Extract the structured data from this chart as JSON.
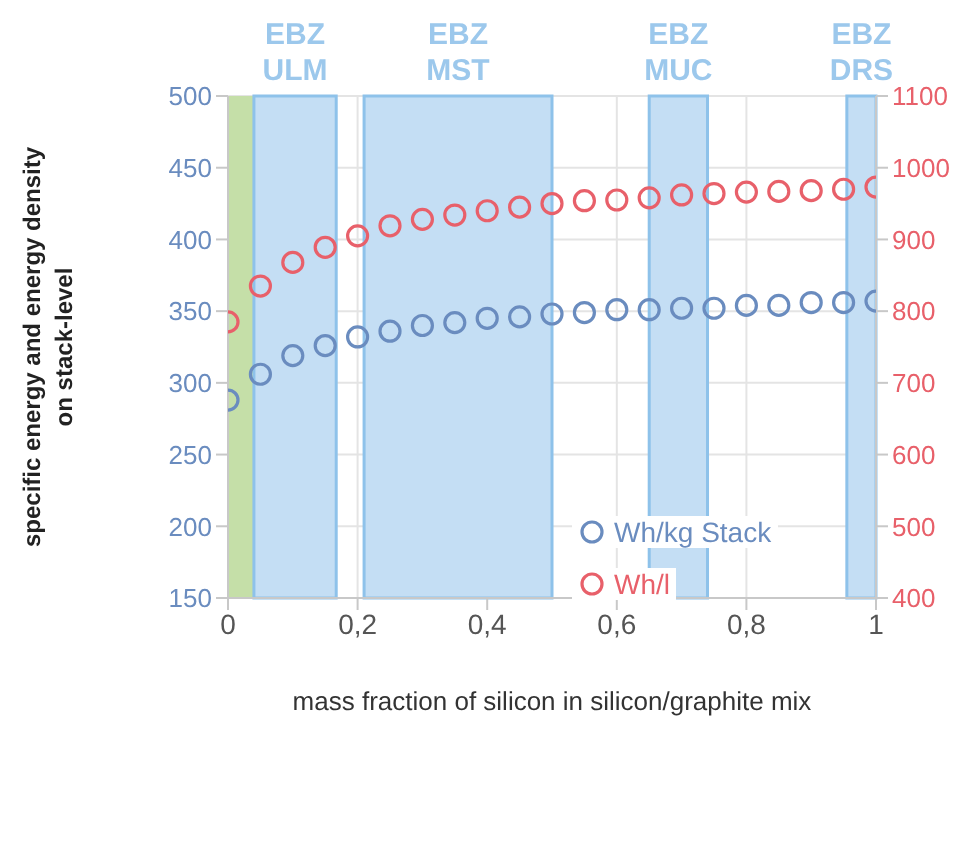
{
  "chart_data": {
    "type": "scatter",
    "xlabel": "mass fraction of silicon in silicon/graphite mix",
    "ylabel": "specific energy  and energy density on stack-level",
    "x": [
      0,
      0.05,
      0.1,
      0.15,
      0.2,
      0.25,
      0.3,
      0.35,
      0.4,
      0.45,
      0.5,
      0.55,
      0.6,
      0.65,
      0.7,
      0.75,
      0.8,
      0.85,
      0.9,
      0.95,
      1
    ],
    "series": [
      {
        "name": "Wh/kg Stack",
        "color": "#6a8cbf",
        "values": [
          288,
          306,
          319,
          326,
          332,
          336,
          340,
          342,
          345,
          346,
          348,
          349,
          351,
          351,
          352,
          352,
          354,
          354,
          356,
          356,
          357
        ]
      },
      {
        "name": "Wh/l",
        "color": "#e8606a",
        "axis": "y2",
        "values": [
          785,
          835,
          868,
          889,
          905,
          919,
          928,
          934,
          940,
          945,
          950,
          954,
          955,
          958,
          962,
          964,
          966,
          967,
          968,
          970,
          973
        ]
      }
    ],
    "xlim": [
      0,
      1
    ],
    "xticks": [
      0,
      {
        "value": 0.2,
        "label": "0,2"
      },
      {
        "value": 0.4,
        "label": "0,4"
      },
      {
        "value": 0.6,
        "label": "0,6"
      },
      {
        "value": 0.8,
        "label": "0,8"
      },
      1
    ],
    "ylim": [
      150,
      500
    ],
    "yticks": [
      150,
      200,
      250,
      300,
      350,
      400,
      450,
      500
    ],
    "y2lim": [
      400,
      1100
    ],
    "y2ticks": [
      400,
      500,
      600,
      700,
      800,
      900,
      1000,
      1100
    ],
    "bands": [
      {
        "axis": "x",
        "from": 0,
        "to": 0.04,
        "label": null,
        "color": "#c5dfa8"
      },
      {
        "axis": "x",
        "from": 0.04,
        "to": 0.167,
        "label": "EBZ ULM",
        "color": "#c4def4"
      },
      {
        "axis": "x",
        "from": 0.21,
        "to": 0.5,
        "label": "EBZ MST",
        "color": "#c4def4"
      },
      {
        "axis": "x",
        "from": 0.65,
        "to": 0.74,
        "label": "EBZ MUC",
        "color": "#c4def4"
      },
      {
        "axis": "x",
        "from": 0.955,
        "to": 1,
        "label": "EBZ DRS",
        "color": "#c4def4"
      }
    ],
    "grid": true,
    "legend": "bottom right",
    "marker": "circle"
  }
}
